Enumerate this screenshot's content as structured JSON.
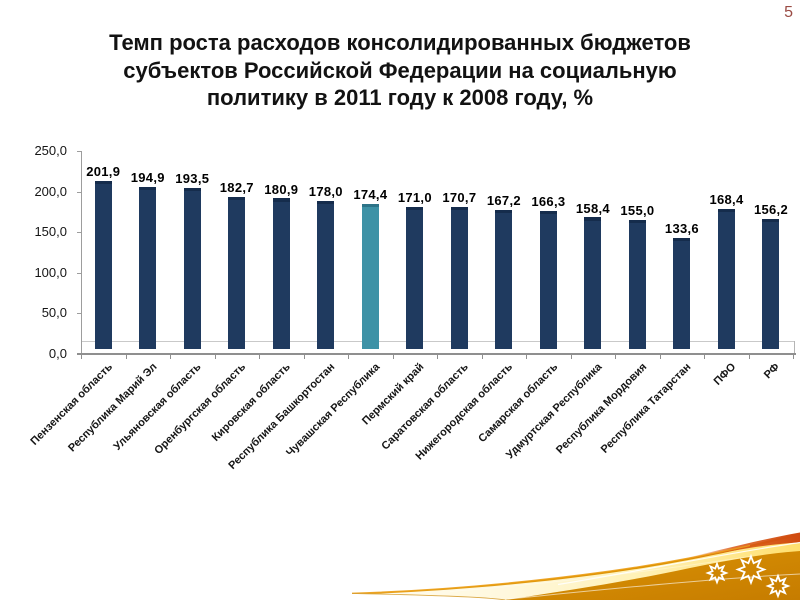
{
  "slide": {
    "page_number": "5",
    "title_lines": [
      "Темп роста расходов консолидированных бюджетов",
      "субъектов Российской Федерации на социальную",
      "политику в 2011 году к 2008 году, %"
    ]
  },
  "chart_data": {
    "type": "bar",
    "title": "Темп роста расходов консолидированных бюджетов субъектов Российской Федерации на социальную политику в 2011 году к 2008 году, %",
    "categories": [
      "Пензенская область",
      "Республика Марий Эл",
      "Ульяновская область",
      "Оренбургская область",
      "Кировская область",
      "Республика Башкортостан",
      "Чувашская Республика",
      "Пермский край",
      "Саратовская область",
      "Нижегородская область",
      "Самарская область",
      "Удмуртская Республика",
      "Республика Мордовия",
      "Республика Татарстан",
      "ПФО",
      "РФ"
    ],
    "values": [
      201.9,
      194.9,
      193.5,
      182.7,
      180.9,
      178.0,
      174.4,
      171.0,
      170.7,
      167.2,
      166.3,
      158.4,
      155.0,
      133.6,
      168.4,
      156.2
    ],
    "value_labels": [
      "201,9",
      "194,9",
      "193,5",
      "182,7",
      "180,9",
      "178,0",
      "174,4",
      "171,0",
      "170,7",
      "167,2",
      "166,3",
      "158,4",
      "155,0",
      "133,6",
      "168,4",
      "156,2"
    ],
    "y_tick_labels": [
      "0,0",
      "50,0",
      "100,0",
      "150,0",
      "200,0",
      "250,0"
    ],
    "ylim": [
      0,
      250
    ],
    "xlabel": "",
    "ylabel": "",
    "grid": false,
    "legend": false,
    "highlight_index": 6,
    "bar_color": "#1f3a5f",
    "bar_cap_color": "#152c4c",
    "highlight_color": "#3e92a6",
    "highlight_cap_color": "#2d7488",
    "axis_color": "#8f8f8f",
    "gridline_color": "#c9c9c9"
  }
}
